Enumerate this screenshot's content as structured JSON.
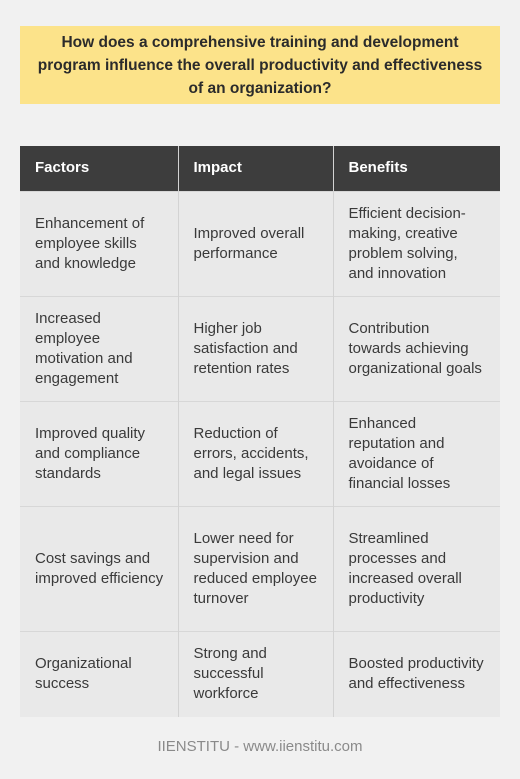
{
  "question": "How does a comprehensive training and development program influence the overall productivity and effectiveness of an organization?",
  "table": {
    "headers": [
      "Factors",
      "Impact",
      "Benefits"
    ],
    "rows": [
      [
        "Enhancement of employee skills and knowledge",
        "Improved overall performance",
        "Efficient decision-making, creative problem solving, and innovation"
      ],
      [
        "Increased employee motivation and engagement",
        "Higher job satisfaction and retention rates",
        "Contribution towards achieving organizational goals"
      ],
      [
        "Improved quality and compliance standards",
        "Reduction of errors, accidents, and legal issues",
        "Enhanced reputation and avoidance of financial losses"
      ],
      [
        "Cost savings and improved efficiency",
        "Lower need for supervision and reduced employee turnover",
        "Streamlined processes and increased overall productivity"
      ],
      [
        "Organizational success",
        "Strong and successful workforce",
        "Boosted productivity and effectiveness"
      ]
    ]
  },
  "footer": "IIENSTITU - www.iienstitu.com"
}
